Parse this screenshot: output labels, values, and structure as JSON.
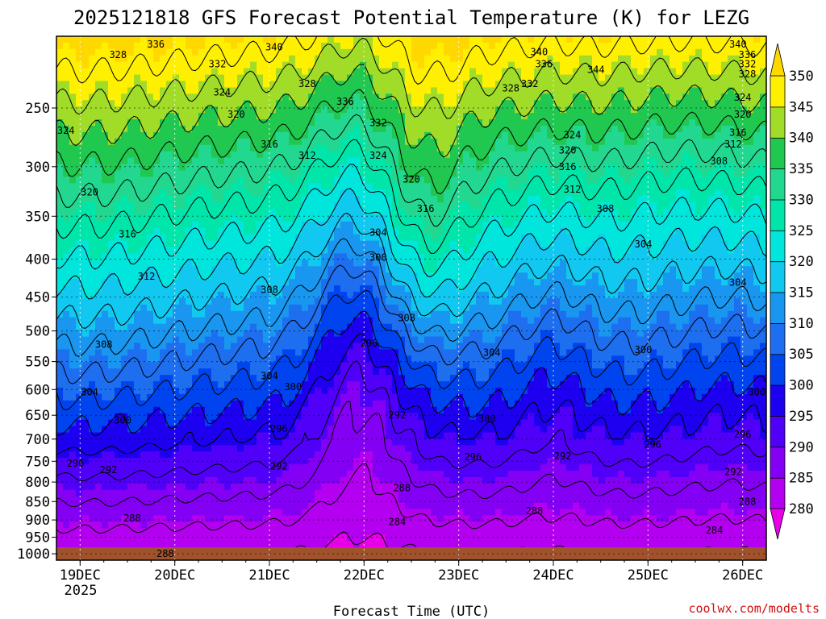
{
  "chart_data": {
    "type": "heatmap",
    "title": "2025121818 GFS Forecast Potential Temperature (K) for LEZG",
    "xlabel": "Forecast Time (UTC)",
    "x_ticks": [
      "19DEC",
      "20DEC",
      "21DEC",
      "22DEC",
      "23DEC",
      "24DEC",
      "25DEC",
      "26DEC"
    ],
    "x_year_label": "2025",
    "x_range_days": [
      18.75,
      26.25
    ],
    "y_ticks": [
      250,
      300,
      350,
      400,
      450,
      500,
      550,
      600,
      650,
      700,
      750,
      800,
      850,
      900,
      950,
      1000
    ],
    "y_range_hpa": [
      200,
      1020
    ],
    "y_scale": "log",
    "grid": "dotted",
    "colorbar": {
      "levels": [
        280,
        285,
        290,
        295,
        300,
        305,
        310,
        315,
        320,
        325,
        330,
        335,
        340,
        345,
        350
      ],
      "colors": [
        "#e800e8",
        "#b400f0",
        "#8400f4",
        "#5000f8",
        "#1e00f0",
        "#0044f0",
        "#1e6ef0",
        "#1896f0",
        "#10c8f0",
        "#00e6dc",
        "#00e6aa",
        "#22d890",
        "#20c850",
        "#a0dc28",
        "#fff000",
        "#ffd800"
      ],
      "extend": "both"
    },
    "contour_interval_k": 4,
    "surface_color": "#a0522d",
    "contour_labels": [
      {
        "day": 19.9,
        "hpa": 1000,
        "value": "288"
      },
      {
        "day": 18.95,
        "hpa": 755,
        "value": "296"
      },
      {
        "day": 19.3,
        "hpa": 770,
        "value": "292"
      },
      {
        "day": 19.55,
        "hpa": 895,
        "value": "288"
      },
      {
        "day": 19.45,
        "hpa": 660,
        "value": "300"
      },
      {
        "day": 19.1,
        "hpa": 605,
        "value": "304"
      },
      {
        "day": 19.25,
        "hpa": 522,
        "value": "308"
      },
      {
        "day": 19.7,
        "hpa": 422,
        "value": "312"
      },
      {
        "day": 19.5,
        "hpa": 370,
        "value": "316"
      },
      {
        "day": 19.1,
        "hpa": 325,
        "value": "320"
      },
      {
        "day": 18.85,
        "hpa": 268,
        "value": "324"
      },
      {
        "day": 19.4,
        "hpa": 212,
        "value": "328"
      },
      {
        "day": 19.8,
        "hpa": 205,
        "value": "336"
      },
      {
        "day": 20.45,
        "hpa": 218,
        "value": "332"
      },
      {
        "day": 20.5,
        "hpa": 238,
        "value": "324"
      },
      {
        "day": 20.65,
        "hpa": 255,
        "value": "320"
      },
      {
        "day": 21.0,
        "hpa": 280,
        "value": "316"
      },
      {
        "day": 21.4,
        "hpa": 290,
        "value": "312"
      },
      {
        "day": 21.05,
        "hpa": 207,
        "value": "340"
      },
      {
        "day": 21.4,
        "hpa": 232,
        "value": "328"
      },
      {
        "day": 21.8,
        "hpa": 245,
        "value": "336"
      },
      {
        "day": 22.15,
        "hpa": 262,
        "value": "332"
      },
      {
        "day": 22.15,
        "hpa": 290,
        "value": "324"
      },
      {
        "day": 22.5,
        "hpa": 312,
        "value": "320"
      },
      {
        "day": 22.65,
        "hpa": 342,
        "value": "316"
      },
      {
        "day": 22.15,
        "hpa": 368,
        "value": "304"
      },
      {
        "day": 22.15,
        "hpa": 398,
        "value": "300"
      },
      {
        "day": 21.0,
        "hpa": 440,
        "value": "308"
      },
      {
        "day": 22.45,
        "hpa": 480,
        "value": "308"
      },
      {
        "day": 22.05,
        "hpa": 520,
        "value": "296"
      },
      {
        "day": 21.0,
        "hpa": 575,
        "value": "304"
      },
      {
        "day": 21.25,
        "hpa": 595,
        "value": "300"
      },
      {
        "day": 21.1,
        "hpa": 678,
        "value": "296"
      },
      {
        "day": 21.1,
        "hpa": 762,
        "value": "292"
      },
      {
        "day": 22.35,
        "hpa": 650,
        "value": "292"
      },
      {
        "day": 22.4,
        "hpa": 815,
        "value": "288"
      },
      {
        "day": 22.35,
        "hpa": 905,
        "value": "284"
      },
      {
        "day": 23.35,
        "hpa": 535,
        "value": "304"
      },
      {
        "day": 23.3,
        "hpa": 657,
        "value": "300"
      },
      {
        "day": 23.15,
        "hpa": 740,
        "value": "296"
      },
      {
        "day": 24.1,
        "hpa": 738,
        "value": "292"
      },
      {
        "day": 23.8,
        "hpa": 875,
        "value": "288"
      },
      {
        "day": 23.55,
        "hpa": 235,
        "value": "328"
      },
      {
        "day": 24.45,
        "hpa": 222,
        "value": "344"
      },
      {
        "day": 23.75,
        "hpa": 232,
        "value": "332"
      },
      {
        "day": 23.85,
        "hpa": 210,
        "value": "340"
      },
      {
        "day": 23.9,
        "hpa": 218,
        "value": "336"
      },
      {
        "day": 24.2,
        "hpa": 272,
        "value": "324"
      },
      {
        "day": 24.15,
        "hpa": 285,
        "value": "320"
      },
      {
        "day": 24.15,
        "hpa": 300,
        "value": "316"
      },
      {
        "day": 24.2,
        "hpa": 322,
        "value": "312"
      },
      {
        "day": 24.55,
        "hpa": 342,
        "value": "308"
      },
      {
        "day": 24.95,
        "hpa": 382,
        "value": "304"
      },
      {
        "day": 24.95,
        "hpa": 530,
        "value": "300"
      },
      {
        "day": 25.05,
        "hpa": 712,
        "value": "296"
      },
      {
        "day": 26.05,
        "hpa": 850,
        "value": "288"
      },
      {
        "day": 25.7,
        "hpa": 930,
        "value": "284"
      },
      {
        "day": 25.9,
        "hpa": 775,
        "value": "292"
      },
      {
        "day": 26.15,
        "hpa": 605,
        "value": "300"
      },
      {
        "day": 26.0,
        "hpa": 690,
        "value": "296"
      },
      {
        "day": 25.95,
        "hpa": 430,
        "value": "304"
      },
      {
        "day": 25.75,
        "hpa": 295,
        "value": "308"
      },
      {
        "day": 25.9,
        "hpa": 280,
        "value": "312"
      },
      {
        "day": 25.95,
        "hpa": 270,
        "value": "316"
      },
      {
        "day": 26.0,
        "hpa": 255,
        "value": "320"
      },
      {
        "day": 26.0,
        "hpa": 242,
        "value": "324"
      },
      {
        "day": 26.05,
        "hpa": 225,
        "value": "328"
      },
      {
        "day": 26.05,
        "hpa": 218,
        "value": "332"
      },
      {
        "day": 26.05,
        "hpa": 212,
        "value": "336"
      },
      {
        "day": 25.95,
        "hpa": 205,
        "value": "340"
      }
    ]
  },
  "credit": "coolwx.com/modelts"
}
